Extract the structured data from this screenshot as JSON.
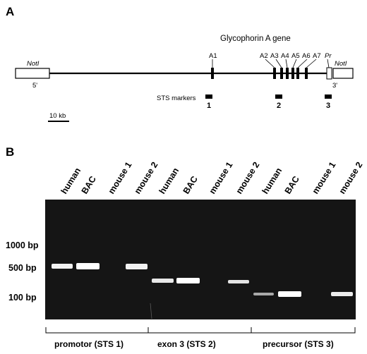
{
  "panel_a": {
    "letter": "A",
    "title": "Glycophorin A gene",
    "left_site": "NotI",
    "right_site": "NotI",
    "five_prime": "5'",
    "three_prime": "3'",
    "exons": [
      "A1",
      "A2",
      "A3",
      "A4",
      "A5",
      "A6",
      "A7"
    ],
    "precursor_label": "Pr",
    "sts_title": "STS markers",
    "sts_numbers": [
      "1",
      "2",
      "3"
    ],
    "scale_label": "10 kb"
  },
  "panel_b": {
    "letter": "B",
    "lanes": [
      "human",
      "BAC",
      "mouse 1",
      "mouse 2",
      "human",
      "BAC",
      "mouse 1",
      "mouse 2",
      "human",
      "BAC",
      "mouse 1",
      "mouse 2"
    ],
    "size_markers": [
      "1000 bp",
      "500 bp",
      "100 bp"
    ],
    "groups": [
      "promotor (STS 1)",
      "exon 3 (STS 2)",
      "precursor (STS 3)"
    ],
    "band_colors": {
      "gel": "#151515",
      "band": "#ffffff"
    }
  }
}
